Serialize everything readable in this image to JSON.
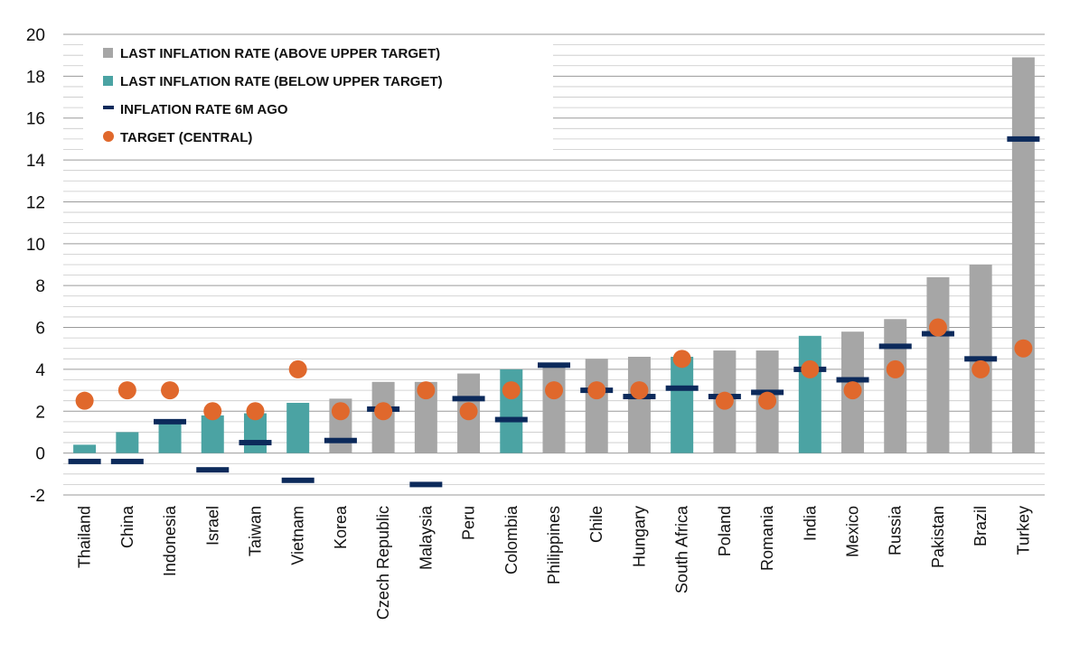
{
  "chart_data": {
    "type": "bar",
    "title": "",
    "xlabel": "",
    "ylabel": "",
    "ylim": [
      -2,
      20
    ],
    "yticks": [
      -2,
      0,
      2,
      4,
      6,
      8,
      10,
      12,
      14,
      16,
      18,
      20
    ],
    "grid": true,
    "legend_position": "top-left",
    "categories": [
      "Thailand",
      "China",
      "Indonesia",
      "Israel",
      "Taiwan",
      "Vietnam",
      "Korea",
      "Czech Republic",
      "Malaysia",
      "Peru",
      "Colombia",
      "Philippines",
      "Chile",
      "Hungary",
      "South Africa",
      "Poland",
      "Romania",
      "India",
      "Mexico",
      "Russia",
      "Pakistan",
      "Brazil",
      "Turkey"
    ],
    "series": [
      {
        "name": "LAST INFLATION RATE (ABOVE UPPER TARGET) / (BELOW UPPER TARGET)",
        "values": [
          0.4,
          1.0,
          1.5,
          1.8,
          1.9,
          2.4,
          2.6,
          3.4,
          3.4,
          3.8,
          4.0,
          4.2,
          4.5,
          4.6,
          4.6,
          4.9,
          4.9,
          5.6,
          5.8,
          6.4,
          8.4,
          9.0,
          18.9
        ],
        "status": [
          "below",
          "below",
          "below",
          "below",
          "below",
          "below",
          "above",
          "above",
          "above",
          "above",
          "below",
          "above",
          "above",
          "above",
          "below",
          "above",
          "above",
          "below",
          "above",
          "above",
          "above",
          "above",
          "above"
        ]
      },
      {
        "name": "INFLATION RATE 6M AGO",
        "values": [
          -0.4,
          -0.4,
          1.5,
          -0.8,
          0.5,
          -1.3,
          0.6,
          2.1,
          -1.5,
          2.6,
          1.6,
          4.2,
          3.0,
          2.7,
          3.1,
          2.7,
          2.9,
          4.0,
          3.5,
          5.1,
          5.7,
          4.5,
          15.0
        ]
      },
      {
        "name": "TARGET (CENTRAL)",
        "values": [
          2.5,
          3.0,
          3.0,
          2.0,
          2.0,
          4.0,
          2.0,
          2.0,
          3.0,
          2.0,
          3.0,
          3.0,
          3.0,
          3.0,
          4.5,
          2.5,
          2.5,
          4.0,
          3.0,
          4.0,
          6.0,
          4.0,
          5.0
        ]
      }
    ],
    "legend": [
      {
        "label": "LAST INFLATION RATE (ABOVE UPPER TARGET)",
        "marker": "square",
        "color": "#a6a6a6"
      },
      {
        "label": "LAST INFLATION RATE (BELOW UPPER TARGET)",
        "marker": "square",
        "color": "#4ba3a3"
      },
      {
        "label": "INFLATION RATE 6M AGO",
        "marker": "dash",
        "color": "#0c2a5b"
      },
      {
        "label": "TARGET (CENTRAL)",
        "marker": "circle",
        "color": "#e0682c"
      }
    ],
    "colors": {
      "above": "#a6a6a6",
      "below": "#4ba3a3",
      "ago": "#0c2a5b",
      "target": "#e0682c",
      "grid": "#b3b3b3"
    }
  }
}
